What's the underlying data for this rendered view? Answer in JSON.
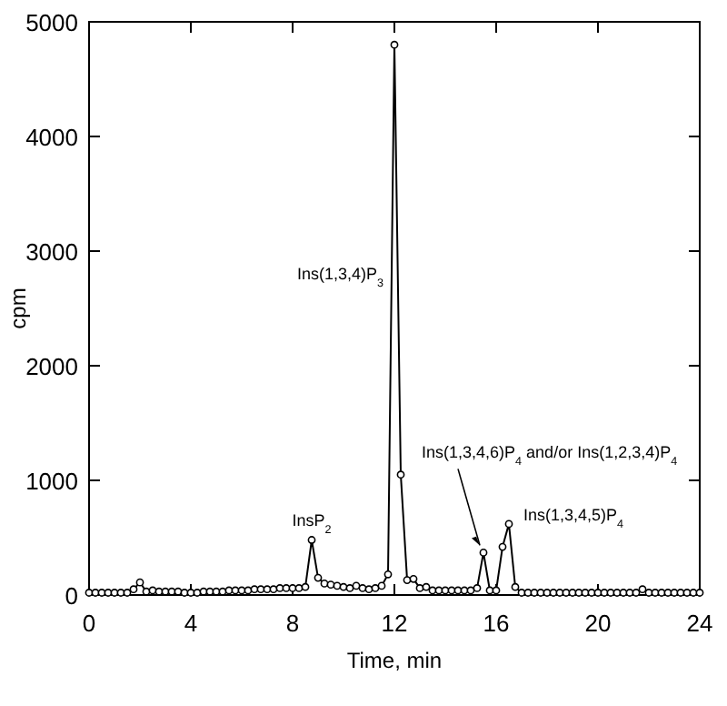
{
  "chart_data": {
    "type": "line",
    "xlabel": "Time, min",
    "ylabel": "cpm",
    "xlim": [
      0,
      24
    ],
    "ylim": [
      0,
      5000
    ],
    "xticks": [
      0,
      4,
      8,
      12,
      16,
      20,
      24
    ],
    "yticks": [
      0,
      1000,
      2000,
      3000,
      4000,
      5000
    ],
    "grid": false,
    "marker": "circle",
    "line_style": "solid",
    "x": [
      0,
      0.25,
      0.5,
      0.75,
      1,
      1.25,
      1.5,
      1.75,
      2,
      2.25,
      2.5,
      2.75,
      3,
      3.25,
      3.5,
      3.75,
      4,
      4.25,
      4.5,
      4.75,
      5,
      5.25,
      5.5,
      5.75,
      6,
      6.25,
      6.5,
      6.75,
      7,
      7.25,
      7.5,
      7.75,
      8,
      8.25,
      8.5,
      8.75,
      9,
      9.25,
      9.5,
      9.75,
      10,
      10.25,
      10.5,
      10.75,
      11,
      11.25,
      11.5,
      11.75,
      12,
      12.25,
      12.5,
      12.75,
      13,
      13.25,
      13.5,
      13.75,
      14,
      14.25,
      14.5,
      14.75,
      15,
      15.25,
      15.5,
      15.75,
      16,
      16.25,
      16.5,
      16.75,
      17,
      17.25,
      17.5,
      17.75,
      18,
      18.25,
      18.5,
      18.75,
      19,
      19.25,
      19.5,
      19.75,
      20,
      20.25,
      20.5,
      20.75,
      21,
      21.25,
      21.5,
      21.75,
      22,
      22.25,
      22.5,
      22.75,
      23,
      23.25,
      23.5,
      23.75,
      24
    ],
    "series": [
      {
        "color": "#000000",
        "values": [
          20,
          20,
          20,
          20,
          20,
          20,
          20,
          50,
          110,
          30,
          40,
          30,
          30,
          30,
          30,
          20,
          20,
          20,
          30,
          30,
          30,
          30,
          40,
          40,
          40,
          40,
          50,
          50,
          50,
          50,
          60,
          60,
          60,
          60,
          70,
          480,
          150,
          100,
          90,
          80,
          70,
          60,
          80,
          60,
          50,
          60,
          80,
          180,
          4800,
          1050,
          130,
          140,
          60,
          70,
          40,
          40,
          40,
          40,
          40,
          40,
          40,
          60,
          370,
          40,
          40,
          420,
          620,
          70,
          20,
          20,
          20,
          20,
          20,
          20,
          20,
          20,
          20,
          20,
          20,
          20,
          20,
          20,
          20,
          20,
          20,
          20,
          20,
          50,
          20,
          20,
          20,
          20,
          20,
          20,
          20,
          20,
          20
        ]
      }
    ],
    "annotations": [
      {
        "text": "InsP$_{2}$",
        "x": 8.75,
        "y": 480
      },
      {
        "text": "Ins(1,3,4)P$_{3}$",
        "x": 12,
        "y": 2800
      },
      {
        "text": "Ins(1,3,4,6)P$_{4}$ and/or Ins(1,2,3,4)P$_{4}$",
        "x": 15.5,
        "y": 370
      },
      {
        "text": "Ins(1,3,4,5)P$_{4}$",
        "x": 16.5,
        "y": 620
      }
    ]
  }
}
